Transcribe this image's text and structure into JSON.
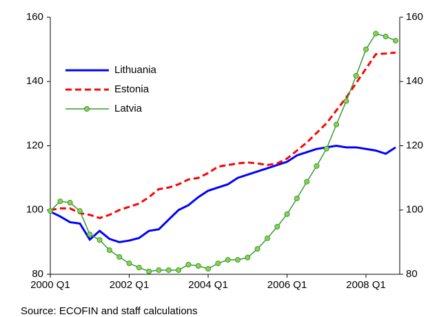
{
  "chart_data": {
    "type": "line",
    "categories": [
      "2000 Q1",
      null,
      null,
      null,
      null,
      null,
      null,
      null,
      "2002 Q1",
      null,
      null,
      null,
      null,
      null,
      null,
      null,
      "2004 Q1",
      null,
      null,
      null,
      null,
      null,
      null,
      null,
      "2006 Q1",
      null,
      null,
      null,
      null,
      null,
      null,
      null,
      "2008 Q1",
      null,
      null,
      null
    ],
    "series": [
      {
        "name": "Lithuania",
        "color": "#0000ff",
        "style": "solid",
        "values": [
          99.5,
          98,
          96.2,
          95.8,
          90.8,
          93.5,
          91,
          90,
          90.5,
          91.3,
          93.5,
          94,
          97,
          100,
          101.5,
          104,
          106,
          107,
          108,
          110,
          111,
          112,
          113,
          114,
          115,
          117,
          118,
          119,
          119.5,
          120,
          119.5,
          119.5,
          119,
          118.5,
          117.5,
          119.5
        ]
      },
      {
        "name": "Estonia",
        "color": "#ff0000",
        "style": "dashed",
        "values": [
          100,
          100.5,
          100.5,
          99,
          98.5,
          97.5,
          98.5,
          100,
          101,
          102,
          104,
          106.5,
          107,
          108,
          109.5,
          110,
          111.5,
          113.5,
          114,
          114.5,
          114.8,
          114.5,
          114,
          114.5,
          116,
          118.5,
          121,
          124,
          127,
          131,
          135,
          139.5,
          144,
          148.5,
          148.7,
          149
        ]
      },
      {
        "name": "Latvia",
        "color": "#339933",
        "style": "markers",
        "values": [
          99.7,
          102.7,
          102.3,
          99.7,
          92.4,
          90.7,
          87.5,
          85.4,
          83.4,
          82.1,
          80.9,
          81.3,
          81.3,
          81.3,
          83.0,
          82.6,
          81.7,
          83.4,
          84.5,
          84.5,
          85.2,
          87.9,
          91.2,
          94.8,
          98.7,
          103.6,
          108.8,
          113.7,
          119.1,
          126.6,
          133.9,
          141.8,
          150.0,
          154.9,
          154.0,
          152.7
        ]
      }
    ],
    "ylim": [
      80,
      160
    ],
    "yticks": [
      80,
      100,
      120,
      140,
      160
    ],
    "y2lim": [
      80,
      160
    ],
    "y2ticks": [
      80,
      100,
      120,
      140,
      160
    ],
    "legend": "upper left",
    "source": "Source: ECOFIN and staff calculations"
  }
}
